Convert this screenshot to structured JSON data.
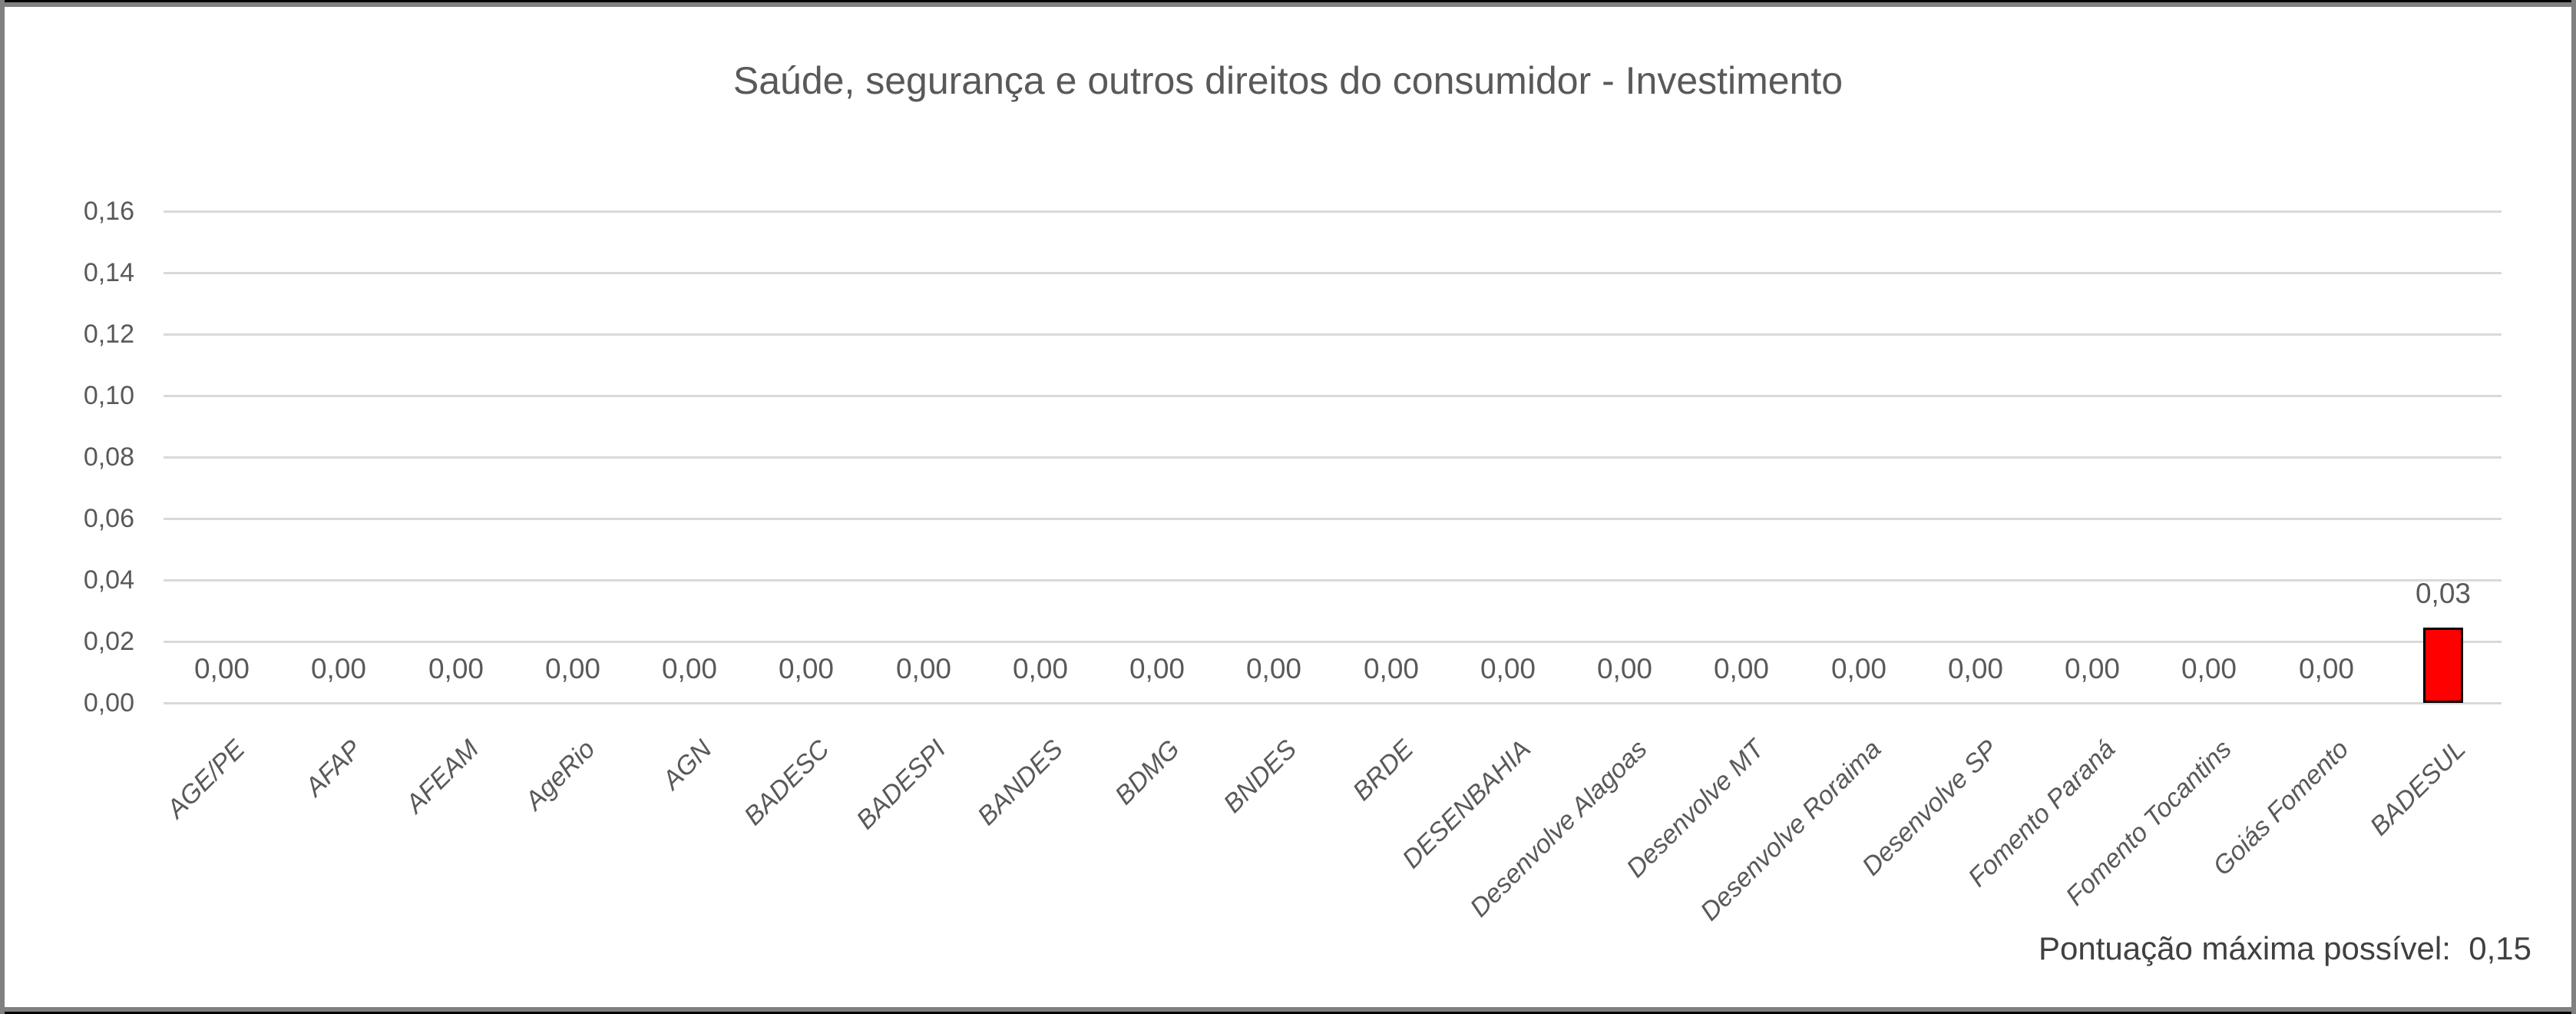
{
  "frame": {
    "outer_border_color": "#000000",
    "inner_border_color": "#808080",
    "background": "#FFFFFF"
  },
  "chart_data": {
    "type": "bar",
    "title": "Saúde, segurança e outros direitos do consumidor - Investimento",
    "categories": [
      "AGE/PE",
      "AFAP",
      "AFEAM",
      "AgeRio",
      "AGN",
      "BADESC",
      "BADESPI",
      "BANDES",
      "BDMG",
      "BNDES",
      "BRDE",
      "DESENBAHIA",
      "Desenvolve Alagoas",
      "Desenvolve MT",
      "Desenvolve Roraima",
      "Desenvolve SP",
      "Fomento Paraná",
      "Fomento Tocantins",
      "Goiás Fomento",
      "BADESUL"
    ],
    "values": [
      0,
      0,
      0,
      0,
      0,
      0,
      0,
      0,
      0,
      0,
      0,
      0,
      0,
      0,
      0,
      0,
      0,
      0,
      0,
      0.03
    ],
    "value_labels": [
      "0,00",
      "0,00",
      "0,00",
      "0,00",
      "0,00",
      "0,00",
      "0,00",
      "0,00",
      "0,00",
      "0,00",
      "0,00",
      "0,00",
      "0,00",
      "0,00",
      "0,00",
      "0,00",
      "0,00",
      "0,00",
      "0,00",
      "0,03"
    ],
    "values_as_drawn": [
      0,
      0,
      0,
      0,
      0,
      0,
      0,
      0,
      0,
      0,
      0,
      0,
      0,
      0,
      0,
      0,
      0,
      0,
      0,
      0.0245
    ],
    "xlabel": "",
    "ylabel": "",
    "ylim": [
      0,
      0.16
    ],
    "ytick_step": 0.02,
    "ytick_labels": [
      "0,00",
      "0,02",
      "0,04",
      "0,06",
      "0,08",
      "0,10",
      "0,12",
      "0,14",
      "0,16"
    ],
    "grid": true,
    "gridline_color": "#D9D9D9",
    "legend_position": "none",
    "bar_color": "#FF0000",
    "bar_border_color": "#000000",
    "text_color": "#595959",
    "category_label_rotation_deg": -45
  },
  "footer": {
    "note": "Pontuação máxima possível:  0,15"
  }
}
